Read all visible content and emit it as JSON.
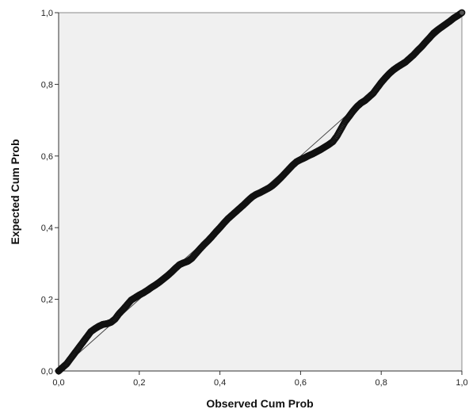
{
  "chart_data": {
    "type": "scatter",
    "title": "",
    "xlabel": "Observed Cum Prob",
    "ylabel": "Expected Cum Prob",
    "xlim": [
      0,
      1
    ],
    "ylim": [
      0,
      1
    ],
    "x_ticks": [
      "0,0",
      "0,2",
      "0,4",
      "0,6",
      "0,8",
      "1,0"
    ],
    "y_ticks": [
      "0,0",
      "0,2",
      "0,4",
      "0,6",
      "0,8",
      "1,0"
    ],
    "grid": false,
    "legend": "none",
    "reference_line": {
      "from": [
        0,
        0
      ],
      "to": [
        1,
        1
      ]
    },
    "series": [
      {
        "points": [
          [
            0.0,
            0.0
          ],
          [
            0.01,
            0.01
          ],
          [
            0.02,
            0.02
          ],
          [
            0.03,
            0.035
          ],
          [
            0.04,
            0.05
          ],
          [
            0.05,
            0.065
          ],
          [
            0.06,
            0.08
          ],
          [
            0.07,
            0.095
          ],
          [
            0.08,
            0.11
          ],
          [
            0.09,
            0.118
          ],
          [
            0.1,
            0.125
          ],
          [
            0.11,
            0.13
          ],
          [
            0.12,
            0.132
          ],
          [
            0.13,
            0.136
          ],
          [
            0.14,
            0.145
          ],
          [
            0.15,
            0.16
          ],
          [
            0.16,
            0.172
          ],
          [
            0.17,
            0.185
          ],
          [
            0.18,
            0.198
          ],
          [
            0.19,
            0.205
          ],
          [
            0.2,
            0.212
          ],
          [
            0.21,
            0.218
          ],
          [
            0.22,
            0.225
          ],
          [
            0.23,
            0.233
          ],
          [
            0.24,
            0.24
          ],
          [
            0.25,
            0.248
          ],
          [
            0.26,
            0.257
          ],
          [
            0.27,
            0.266
          ],
          [
            0.28,
            0.276
          ],
          [
            0.29,
            0.287
          ],
          [
            0.3,
            0.297
          ],
          [
            0.31,
            0.302
          ],
          [
            0.32,
            0.306
          ],
          [
            0.33,
            0.314
          ],
          [
            0.34,
            0.327
          ],
          [
            0.35,
            0.34
          ],
          [
            0.36,
            0.352
          ],
          [
            0.37,
            0.363
          ],
          [
            0.38,
            0.375
          ],
          [
            0.39,
            0.388
          ],
          [
            0.4,
            0.4
          ],
          [
            0.41,
            0.413
          ],
          [
            0.42,
            0.425
          ],
          [
            0.43,
            0.435
          ],
          [
            0.44,
            0.445
          ],
          [
            0.45,
            0.455
          ],
          [
            0.46,
            0.465
          ],
          [
            0.47,
            0.476
          ],
          [
            0.48,
            0.486
          ],
          [
            0.49,
            0.493
          ],
          [
            0.5,
            0.498
          ],
          [
            0.51,
            0.504
          ],
          [
            0.52,
            0.51
          ],
          [
            0.53,
            0.517
          ],
          [
            0.54,
            0.527
          ],
          [
            0.55,
            0.538
          ],
          [
            0.56,
            0.55
          ],
          [
            0.57,
            0.562
          ],
          [
            0.58,
            0.574
          ],
          [
            0.59,
            0.584
          ],
          [
            0.6,
            0.59
          ],
          [
            0.61,
            0.595
          ],
          [
            0.62,
            0.601
          ],
          [
            0.63,
            0.606
          ],
          [
            0.64,
            0.612
          ],
          [
            0.65,
            0.618
          ],
          [
            0.66,
            0.625
          ],
          [
            0.67,
            0.632
          ],
          [
            0.68,
            0.64
          ],
          [
            0.69,
            0.655
          ],
          [
            0.7,
            0.675
          ],
          [
            0.71,
            0.695
          ],
          [
            0.72,
            0.71
          ],
          [
            0.73,
            0.725
          ],
          [
            0.74,
            0.738
          ],
          [
            0.75,
            0.748
          ],
          [
            0.76,
            0.755
          ],
          [
            0.77,
            0.765
          ],
          [
            0.78,
            0.775
          ],
          [
            0.79,
            0.79
          ],
          [
            0.8,
            0.805
          ],
          [
            0.81,
            0.818
          ],
          [
            0.82,
            0.83
          ],
          [
            0.83,
            0.84
          ],
          [
            0.84,
            0.848
          ],
          [
            0.85,
            0.855
          ],
          [
            0.86,
            0.862
          ],
          [
            0.87,
            0.872
          ],
          [
            0.88,
            0.882
          ],
          [
            0.89,
            0.894
          ],
          [
            0.9,
            0.905
          ],
          [
            0.91,
            0.918
          ],
          [
            0.92,
            0.93
          ],
          [
            0.93,
            0.943
          ],
          [
            0.94,
            0.952
          ],
          [
            0.95,
            0.96
          ],
          [
            0.96,
            0.968
          ],
          [
            0.97,
            0.976
          ],
          [
            0.98,
            0.985
          ],
          [
            0.99,
            0.992
          ],
          [
            1.0,
            1.0
          ]
        ]
      }
    ]
  }
}
